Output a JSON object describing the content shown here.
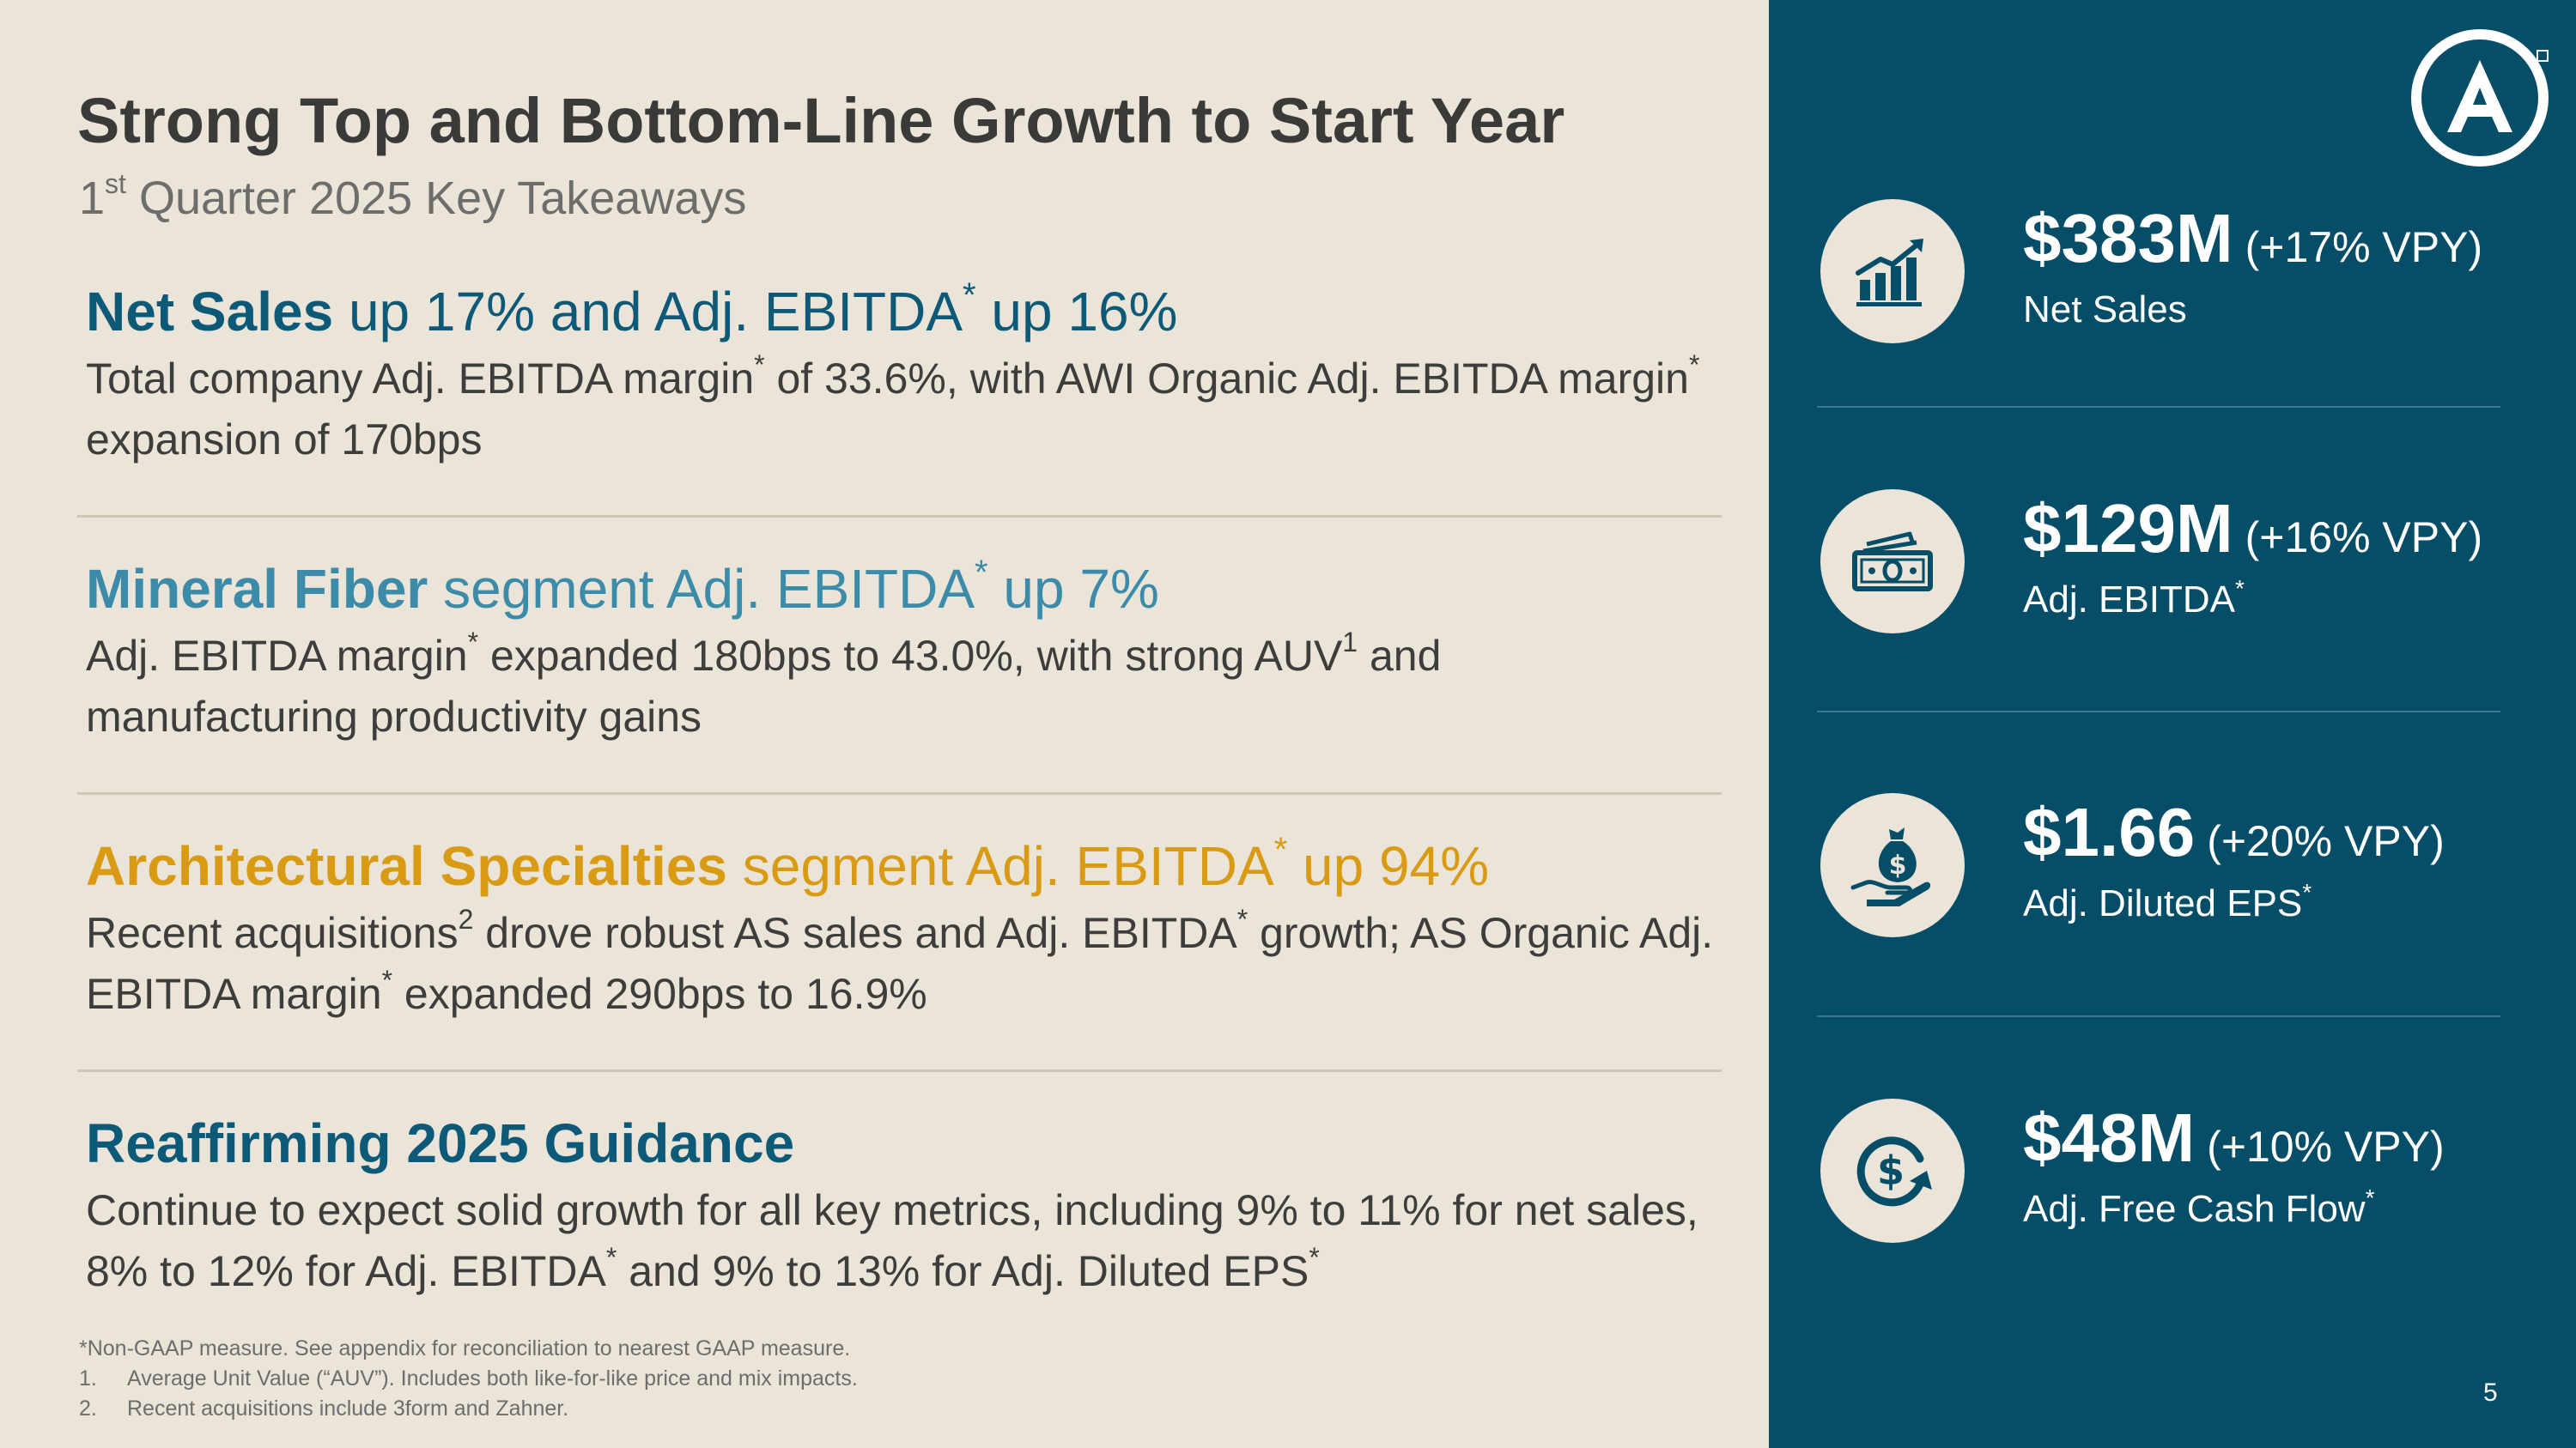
{
  "header": {
    "title": "Strong Top and Bottom-Line Growth to Start Year",
    "subtitle_num": "1",
    "subtitle_sup": "st",
    "subtitle_rest": " Quarter 2025 Key Takeaways"
  },
  "sections": [
    {
      "head_bold": "Net Sales",
      "head_a": " up 17% and Adj. EBITDA",
      "head_sup": "*",
      "head_b": " up 16%",
      "body": {
        "p1": "Total company Adj. EBITDA margin",
        "s1": "*",
        "p2": " of 33.6%, with AWI Organic Adj. EBITDA margin",
        "s2": "*",
        "p3": " expansion of 170bps"
      }
    },
    {
      "head_bold": "Mineral Fiber",
      "head_a": " segment Adj. EBITDA",
      "head_sup": "*",
      "head_b": " up 7%",
      "body": {
        "p1": "Adj. EBITDA margin",
        "s1": "*",
        "p2": " expanded 180bps to 43.0%, with strong AUV",
        "s2": "1",
        "p3": " and manufacturing productivity gains"
      }
    },
    {
      "head_bold": "Architectural Specialties",
      "head_a": " segment Adj. EBITDA",
      "head_sup": "*",
      "head_b": " up 94%",
      "body": {
        "p1": "Recent acquisitions",
        "s1": "2",
        "p2": " drove robust AS sales and Adj. EBITDA",
        "s2": "*",
        "p3": " growth; AS Organic Adj. EBITDA margin",
        "s3": "*",
        "p4": " expanded 290bps to 16.9%"
      }
    },
    {
      "head_bold": "Reaffirming 2025 Guidance",
      "body": {
        "p1": "Continue to expect solid growth for all key metrics, including 9% to 11% for net sales, 8% to 12% for Adj. EBITDA",
        "s1": "*",
        "p2": " and 9% to 13% for Adj. Diluted EPS",
        "s2": "*"
      }
    }
  ],
  "footnotes": {
    "note0": "*Non-GAAP measure. See appendix for reconciliation to nearest GAAP measure.",
    "items": [
      {
        "num": "1.",
        "text": "Average Unit Value (“AUV”). Includes both like-for-like price and mix impacts."
      },
      {
        "num": "2.",
        "text": "Recent acquisitions include 3form and Zahner."
      }
    ]
  },
  "kpis": [
    {
      "icon": "growth-chart-icon",
      "value": "$383M",
      "change": "(+17% VPY)",
      "label": "Net Sales",
      "label_sup": ""
    },
    {
      "icon": "cash-bills-icon",
      "value": "$129M",
      "change": "(+16% VPY)",
      "label": "Adj. EBITDA",
      "label_sup": "*"
    },
    {
      "icon": "money-bag-hand-icon",
      "value": "$1.66",
      "change": "(+20% VPY)",
      "label": "Adj. Diluted EPS",
      "label_sup": "*"
    },
    {
      "icon": "dollar-cycle-icon",
      "value": "$48M",
      "change": "(+10% VPY)",
      "label": "Adj. Free Cash Flow",
      "label_sup": "*"
    }
  ],
  "page_number": "5",
  "colors": {
    "background_left": "#ebe4d9",
    "panel_right": "#064d68",
    "teal": "#0c5a78",
    "light_blue": "#3b8ba9",
    "gold": "#d99a14",
    "text_dark": "#3a3a39"
  }
}
